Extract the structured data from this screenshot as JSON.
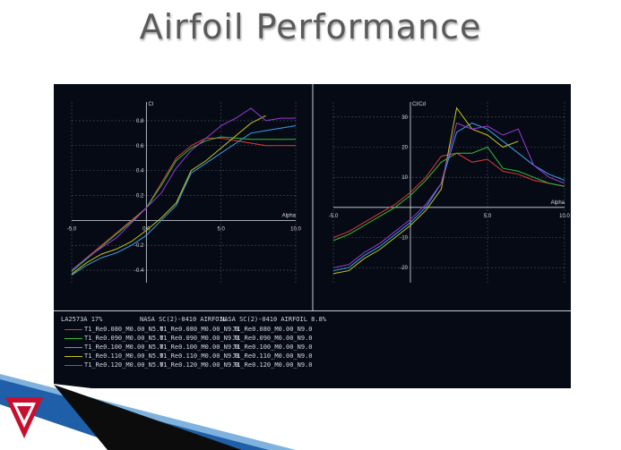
{
  "slide": {
    "title": "Airfoil Performance"
  },
  "colors": {
    "background": "#050a14",
    "axis": "#d8dde6",
    "grid": "#4a5260",
    "series": [
      "#e03a3a",
      "#2fbf3a",
      "#3aa0e6",
      "#c9c41a",
      "#9b3ad6"
    ]
  },
  "chart_data": [
    {
      "type": "line",
      "ylabel": "Cl",
      "xlabel": "Alpha",
      "xlim": [
        -5.0,
        10.0
      ],
      "ylim": [
        -0.5,
        0.95
      ],
      "xticks": [
        -5.0,
        0.0,
        5.0,
        10.0
      ],
      "xtick_labels": [
        "-5.0",
        "0.0",
        "5.0",
        "10.0"
      ],
      "yticks": [
        -0.4,
        -0.2,
        0.2,
        0.4,
        0.6,
        0.8
      ],
      "ytick_labels": [
        "-0.4",
        "-0.2",
        "0.2",
        "0.4",
        "0.6",
        "0.8"
      ],
      "grid": true,
      "series": [
        {
          "color": "#e03a3a",
          "x": [
            -5,
            -4,
            -3,
            -2,
            -1,
            0,
            1,
            2,
            3,
            4,
            5,
            6,
            7,
            8,
            9,
            10
          ],
          "y": [
            -0.4,
            -0.3,
            -0.2,
            -0.1,
            0.0,
            0.1,
            0.3,
            0.5,
            0.6,
            0.66,
            0.66,
            0.64,
            0.62,
            0.6,
            0.6,
            0.6
          ]
        },
        {
          "color": "#2fbf3a",
          "x": [
            -5,
            -4,
            -3,
            -2,
            -1,
            0,
            1,
            2,
            3,
            4,
            5,
            6,
            7,
            8,
            9,
            10
          ],
          "y": [
            -0.41,
            -0.31,
            -0.21,
            -0.11,
            -0.01,
            0.1,
            0.28,
            0.48,
            0.58,
            0.64,
            0.67,
            0.66,
            0.65,
            0.65,
            0.65,
            0.65
          ]
        },
        {
          "color": "#3aa0e6",
          "x": [
            -5,
            -4,
            -3,
            -2,
            -1,
            0,
            1,
            2,
            3,
            4,
            5,
            6,
            7,
            8,
            9,
            10
          ],
          "y": [
            -0.44,
            -0.36,
            -0.3,
            -0.26,
            -0.2,
            -0.12,
            0.0,
            0.12,
            0.38,
            0.46,
            0.54,
            0.62,
            0.7,
            0.72,
            0.74,
            0.76
          ]
        },
        {
          "color": "#c9c41a",
          "x": [
            -5,
            -4,
            -3,
            -2,
            -1,
            0,
            1,
            2,
            3,
            4,
            5,
            6,
            7,
            8
          ],
          "y": [
            -0.43,
            -0.34,
            -0.27,
            -0.23,
            -0.17,
            -0.08,
            0.02,
            0.14,
            0.4,
            0.48,
            0.58,
            0.68,
            0.78,
            0.84
          ]
        },
        {
          "color": "#9b3ad6",
          "x": [
            -5,
            -4,
            -3,
            -2,
            -1,
            0,
            1,
            2,
            3,
            4,
            5,
            6,
            7,
            8,
            9,
            10
          ],
          "y": [
            -0.4,
            -0.3,
            -0.22,
            -0.14,
            -0.02,
            0.1,
            0.22,
            0.42,
            0.56,
            0.66,
            0.76,
            0.82,
            0.9,
            0.8,
            0.82,
            0.82
          ]
        }
      ]
    },
    {
      "type": "line",
      "ylabel": "Cl/Cd",
      "xlabel": "Alpha",
      "xlim": [
        -5.0,
        10.0
      ],
      "ylim": [
        -25,
        35
      ],
      "xticks": [
        -5.0,
        5.0,
        10.0
      ],
      "xtick_labels": [
        "-5.0",
        "5.0",
        "10.0"
      ],
      "yticks": [
        -20,
        -10,
        10,
        20,
        30
      ],
      "ytick_labels": [
        "-20",
        "-10",
        "10",
        "20",
        "30"
      ],
      "grid": true,
      "series": [
        {
          "color": "#e03a3a",
          "x": [
            -5,
            -4,
            -3,
            -2,
            -1,
            0,
            1,
            2,
            3,
            4,
            5,
            6,
            7,
            8,
            9,
            10
          ],
          "y": [
            -10,
            -8,
            -5,
            -2,
            1,
            5,
            10,
            17,
            18,
            15,
            16,
            12,
            11,
            9,
            8,
            7
          ]
        },
        {
          "color": "#2fbf3a",
          "x": [
            -5,
            -4,
            -3,
            -2,
            -1,
            0,
            1,
            2,
            3,
            4,
            5,
            6,
            7,
            8,
            9,
            10
          ],
          "y": [
            -11,
            -9,
            -6,
            -3,
            0,
            4,
            9,
            15,
            18,
            18,
            20,
            13,
            12,
            10,
            8,
            7
          ]
        },
        {
          "color": "#3aa0e6",
          "x": [
            -5,
            -4,
            -3,
            -2,
            -1,
            0,
            1,
            2,
            3,
            4,
            5,
            6,
            7,
            8,
            9,
            10
          ],
          "y": [
            -21,
            -20,
            -16,
            -13,
            -9,
            -5,
            0,
            8,
            25,
            28,
            26,
            22,
            18,
            14,
            11,
            9
          ]
        },
        {
          "color": "#c9c41a",
          "x": [
            -5,
            -4,
            -3,
            -2,
            -1,
            0,
            1,
            2,
            3,
            4,
            5,
            6,
            7
          ],
          "y": [
            -22,
            -21,
            -17,
            -14,
            -10,
            -6,
            -1,
            6,
            33,
            26,
            24,
            20,
            22
          ]
        },
        {
          "color": "#9b3ad6",
          "x": [
            -5,
            -4,
            -3,
            -2,
            -1,
            0,
            1,
            2,
            3,
            4,
            5,
            6,
            7,
            8,
            9,
            10
          ],
          "y": [
            -20,
            -19,
            -15,
            -12,
            -8,
            -4,
            1,
            8,
            28,
            26,
            27,
            24,
            26,
            14,
            10,
            8
          ]
        }
      ]
    }
  ],
  "legend": {
    "headers": [
      "LA2573A 17%",
      "NASA SC(2)-0410 AIRFOIL",
      "NASA SC(2)-0410 AIRFOIL 8.8%"
    ],
    "rows": [
      {
        "color": "#e03a3a",
        "c1": "T1_Re0.080_M0.00_N5.0",
        "c2": "T1_Re0.080_M0.00_N9.0",
        "c3": "T1_Re0.080_M0.00_N9.0"
      },
      {
        "color": "#2fbf3a",
        "c1": "T1_Re0.090_M0.00_N5.0",
        "c2": "T1_Re0.090_M0.00_N9.0",
        "c3": "T1_Re0.090_M0.00_N9.0"
      },
      {
        "color": "#3aa0e6",
        "c1": "T1_Re0.100_M0.00_N5.0",
        "c2": "T1_Re0.100_M0.00_N9.0",
        "c3": "T1_Re0.100_M0.00_N9.0"
      },
      {
        "color": "#c9c41a",
        "c1": "T1_Re0.110_M0.00_N5.0",
        "c2": "T1_Re0.110_M0.00_N9.0",
        "c3": "T1_Re0.110_M0.00_N9.0"
      },
      {
        "color": "#9b3ad6",
        "c1": "T1_Re0.120_M0.00_N5.0",
        "c2": "T1_Re0.120_M0.00_N9.0",
        "c3": "T1_Re0.120_M0.00_N9.0"
      }
    ]
  }
}
